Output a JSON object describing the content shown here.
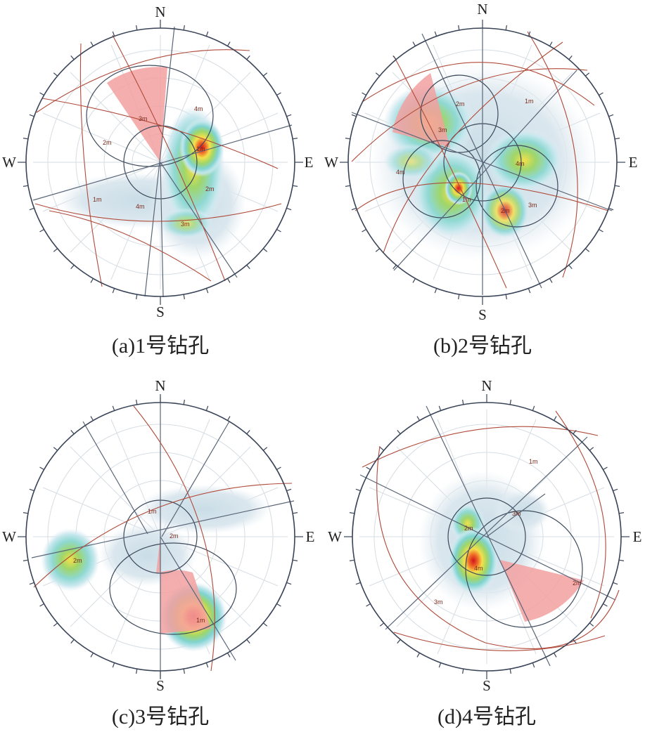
{
  "compass": {
    "n": "N",
    "s": "S",
    "e": "E",
    "w": "W"
  },
  "panels": [
    {
      "id": "a",
      "caption": "(a)1号钻孔",
      "labels": [
        "4m",
        "1m",
        "3m",
        "2m",
        "2m",
        "1m",
        "4m",
        "3m"
      ],
      "colors": {
        "density_hot": "#d0141c",
        "great_circle": "#b04a3a",
        "line": "#3d4a5c",
        "sector": "#f3a0a0"
      }
    },
    {
      "id": "b",
      "caption": "(b)2号钻孔",
      "labels": [
        "2m",
        "1m",
        "3m",
        "4m",
        "4m",
        "1m",
        "2m",
        "3m"
      ],
      "colors": {
        "density_hot": "#d0141c",
        "great_circle": "#b04a3a",
        "line": "#3d4a5c",
        "sector": "#f3a0a0"
      }
    },
    {
      "id": "c",
      "caption": "(c)3号钻孔",
      "labels": [
        "1m",
        "2m",
        "2m",
        "1m"
      ],
      "colors": {
        "density_hot": "#d0141c",
        "great_circle": "#b04a3a",
        "line": "#3d4a5c",
        "sector": "#f3a0a0"
      }
    },
    {
      "id": "d",
      "caption": "(d)4号钻孔",
      "labels": [
        "1m",
        "3m",
        "2m",
        "4m",
        "2m",
        "3m"
      ],
      "colors": {
        "density_hot": "#d0141c",
        "great_circle": "#b04a3a",
        "line": "#3d4a5c",
        "sector": "#f3a0a0"
      }
    }
  ]
}
